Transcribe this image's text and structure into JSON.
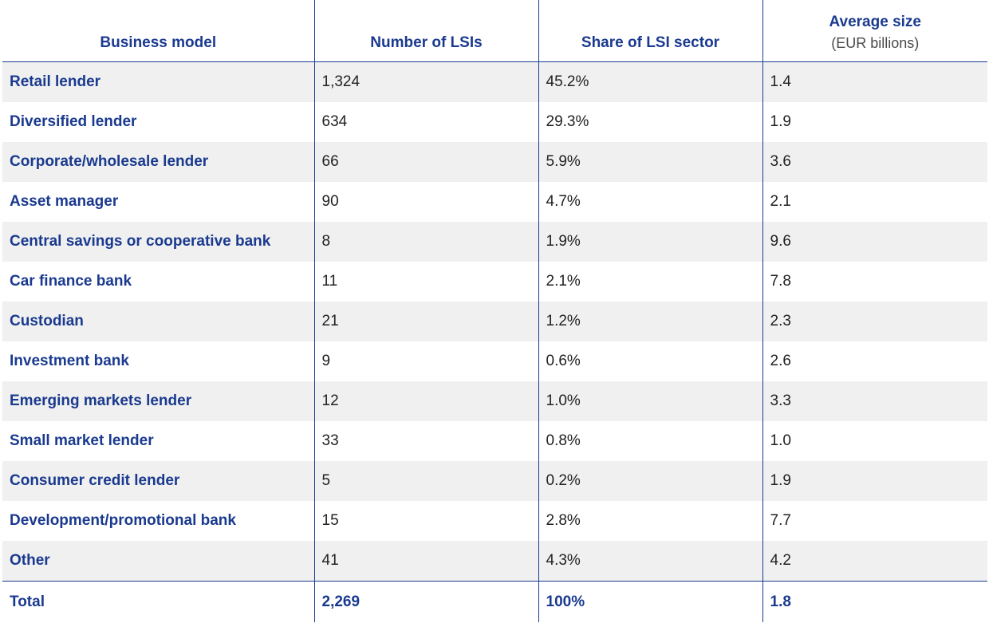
{
  "chart_data": {
    "type": "table",
    "columns": [
      {
        "label": "Business model",
        "sublabel": ""
      },
      {
        "label": "Number of LSIs",
        "sublabel": ""
      },
      {
        "label": "Share of LSI sector",
        "sublabel": ""
      },
      {
        "label": "Average size",
        "sublabel": "(EUR billions)"
      }
    ],
    "rows": [
      {
        "model": "Retail lender",
        "number": "1,324",
        "share": "45.2%",
        "avg_size": "1.4"
      },
      {
        "model": "Diversified lender",
        "number": "634",
        "share": "29.3%",
        "avg_size": "1.9"
      },
      {
        "model": "Corporate/wholesale lender",
        "number": "66",
        "share": "5.9%",
        "avg_size": "3.6"
      },
      {
        "model": "Asset manager",
        "number": "90",
        "share": "4.7%",
        "avg_size": "2.1"
      },
      {
        "model": "Central savings or cooperative bank",
        "number": "8",
        "share": "1.9%",
        "avg_size": "9.6"
      },
      {
        "model": "Car finance bank",
        "number": "11",
        "share": "2.1%",
        "avg_size": "7.8"
      },
      {
        "model": "Custodian",
        "number": "21",
        "share": "1.2%",
        "avg_size": "2.3"
      },
      {
        "model": "Investment bank",
        "number": "9",
        "share": "0.6%",
        "avg_size": "2.6"
      },
      {
        "model": "Emerging markets lender",
        "number": "12",
        "share": "1.0%",
        "avg_size": "3.3"
      },
      {
        "model": "Small market lender",
        "number": "33",
        "share": "0.8%",
        "avg_size": "1.0"
      },
      {
        "model": "Consumer credit lender",
        "number": "5",
        "share": "0.2%",
        "avg_size": "1.9"
      },
      {
        "model": "Development/promotional bank",
        "number": "15",
        "share": "2.8%",
        "avg_size": "7.7"
      },
      {
        "model": "Other",
        "number": "41",
        "share": "4.3%",
        "avg_size": "4.2"
      }
    ],
    "total": {
      "model": "Total",
      "number": "2,269",
      "share": "100%",
      "avg_size": "1.8"
    },
    "colors": {
      "accent": "#1a3a8f",
      "row_shade": "#f0f0f0",
      "text": "#222222"
    }
  }
}
